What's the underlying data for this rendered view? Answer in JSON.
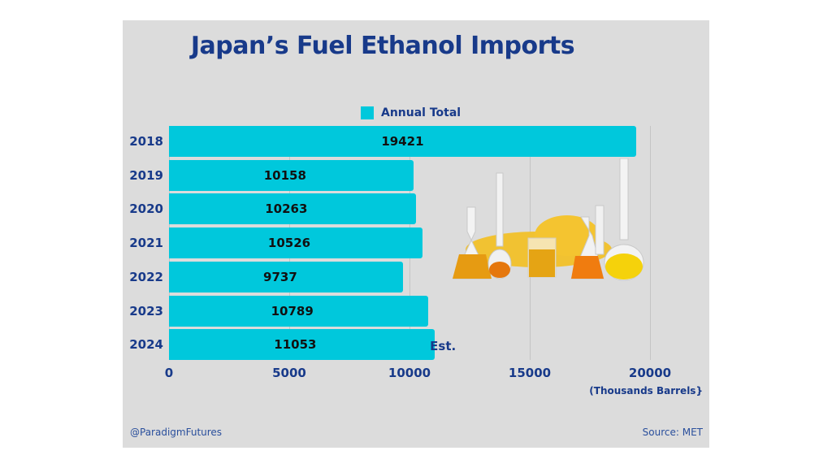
{
  "title": "Japan’s Fuel Ethanol Imports",
  "legend": {
    "label": "Annual Total",
    "color": "#00c8dc"
  },
  "annotation": "Est.",
  "x_unit": "(Thousands Barrels}",
  "footer": {
    "handle": "@ParadigmFutures",
    "source": "Source: MET"
  },
  "illustration": "lab-flasks-with-corn-image",
  "colors": {
    "bar": "#00c8dc",
    "title": "#183a8a",
    "background": "#dcdcdc"
  },
  "chart_data": {
    "type": "bar",
    "orientation": "horizontal",
    "title": "Japan’s Fuel Ethanol Imports",
    "categories": [
      "2018",
      "2019",
      "2020",
      "2021",
      "2022",
      "2023",
      "2024"
    ],
    "series": [
      {
        "name": "Annual Total",
        "values": [
          19421,
          10158,
          10263,
          10526,
          9737,
          10789,
          11053
        ]
      }
    ],
    "value_labels": [
      "19421",
      "10158",
      "10263",
      "10526",
      "9737",
      "10789",
      "11053"
    ],
    "xlabel": "(Thousands Barrels}",
    "ylabel": "",
    "xlim": [
      0,
      20000
    ],
    "xticks": [
      "0",
      "5000",
      "10000",
      "15000",
      "20000"
    ],
    "grid": true,
    "legend_position": "top",
    "annotations": [
      {
        "category": "2024",
        "text": "Est."
      }
    ]
  }
}
